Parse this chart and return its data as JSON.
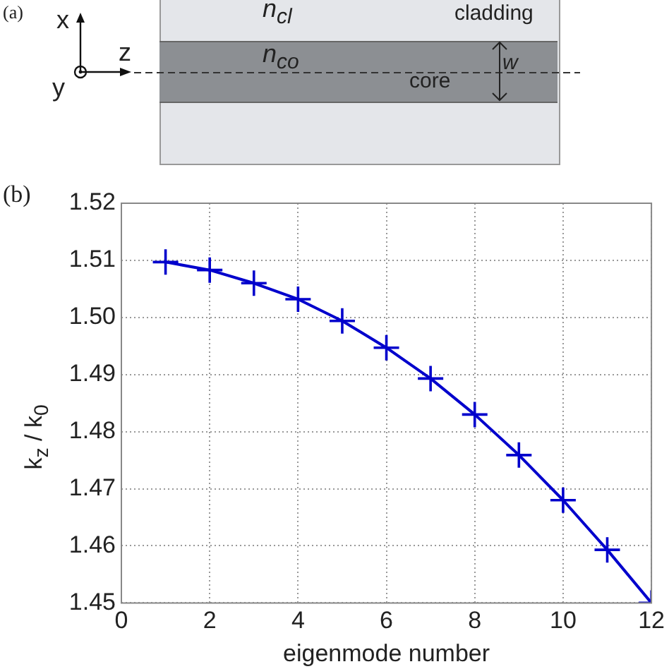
{
  "chart_data": {
    "type": "line",
    "xlabel": "eigenmode number",
    "ylabel": "k$_{z}$ / k$_{0}$",
    "x": [
      1,
      2,
      3,
      4,
      5,
      6,
      7,
      8,
      9,
      10,
      11,
      12
    ],
    "series": [
      {
        "color": "#0000cc",
        "values": [
          1.5097,
          1.5083,
          1.506,
          1.5032,
          1.4994,
          1.4947,
          1.4893,
          1.483,
          1.4759,
          1.468,
          1.4593,
          1.45
        ]
      }
    ],
    "xlim": [
      0,
      12
    ],
    "xticks": [
      0,
      2,
      4,
      6,
      8,
      10,
      12
    ],
    "ylim": [
      1.45,
      1.52
    ],
    "yticks": [
      1.45,
      1.46,
      1.47,
      1.48,
      1.49,
      {
        "value": 1.5,
        "label": "1.50"
      },
      1.51,
      1.52
    ],
    "grid": true,
    "legend": false,
    "marker": "cross",
    "line_style": "solid",
    "annotations": [
      "(a)",
      "x",
      "y",
      "z",
      "n$_{cl}$",
      "cladding",
      "n$_{co}$",
      "core",
      "w",
      "(b)"
    ]
  }
}
